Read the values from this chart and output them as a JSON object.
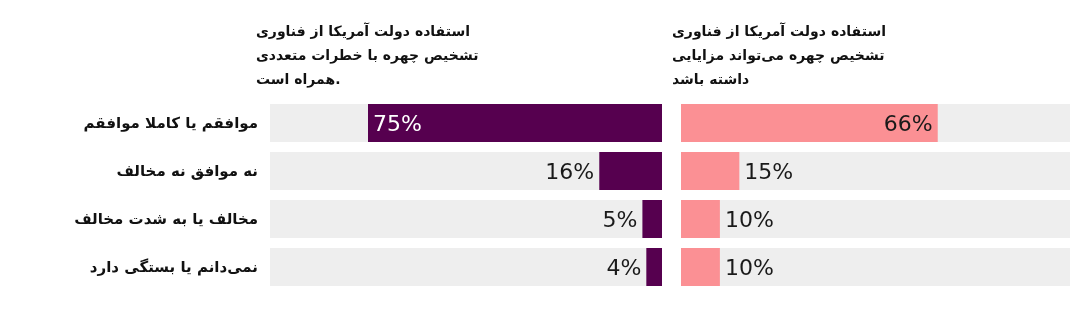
{
  "chart_data": [
    {
      "type": "bar",
      "orientation": "horizontal",
      "title": "استفاده دولت آمریکا از فناوری تشخیص چهره می‌تواند مزایایی داشته باشد",
      "categories": [
        null,
        null,
        null,
        null
      ],
      "values": [
        66,
        15,
        10,
        10
      ],
      "value_labels": [
        "66%",
        "15%",
        "10%",
        "10%"
      ],
      "color": "#fb9094",
      "xlim": [
        0,
        100
      ],
      "tick_labels": false
    },
    {
      "type": "bar",
      "orientation": "horizontal",
      "title": "استفاده دولت آمریکا از فناوری تشخیص چهره با خطرات متعددی همراه است.",
      "categories": [
        "موافقم یا کاملا موافقم",
        "نه موافق نه مخالف",
        "مخالف یا به شدت مخالف",
        "نمی‌دانم یا بستگی دارد"
      ],
      "values": [
        75,
        16,
        5,
        4
      ],
      "value_labels": [
        "75%",
        "16%",
        "5%",
        "4%"
      ],
      "color": "#56004f",
      "xlim": [
        100,
        0
      ],
      "tick_labels": "y"
    }
  ]
}
